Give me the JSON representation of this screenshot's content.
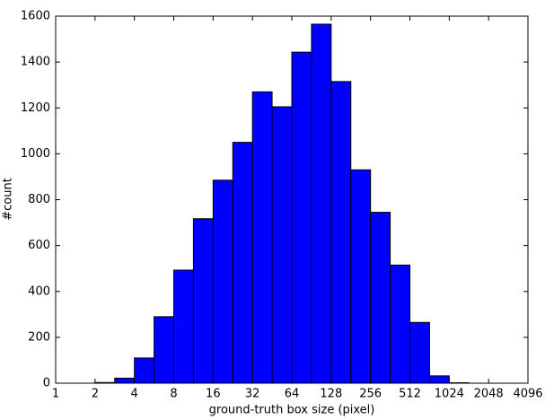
{
  "chart_data": {
    "type": "histogram",
    "xlabel": "ground-truth box size (pixel)",
    "ylabel": "#count",
    "bins": [
      1,
      1.414,
      2,
      2.828,
      4,
      5.657,
      8,
      11.31,
      16,
      22.63,
      32,
      45.25,
      64,
      90.51,
      128,
      181.02,
      256,
      362.04,
      512,
      724.08,
      1024,
      1448.15,
      2048,
      2896.31,
      4096
    ],
    "values": [
      0,
      0,
      3,
      22,
      110,
      290,
      493,
      717,
      885,
      1050,
      1270,
      1205,
      1443,
      1565,
      1315,
      930,
      745,
      515,
      265,
      32,
      2,
      0,
      0,
      0
    ],
    "color": "#0000ff",
    "xscale": "log2",
    "xlim": [
      1,
      4096
    ],
    "xticks": [
      1,
      2,
      4,
      8,
      16,
      32,
      64,
      128,
      256,
      512,
      1024,
      2048,
      4096
    ],
    "ylim": [
      0,
      1600
    ],
    "yticks": [
      0,
      200,
      400,
      600,
      800,
      1000,
      1200,
      1400,
      1600
    ]
  }
}
